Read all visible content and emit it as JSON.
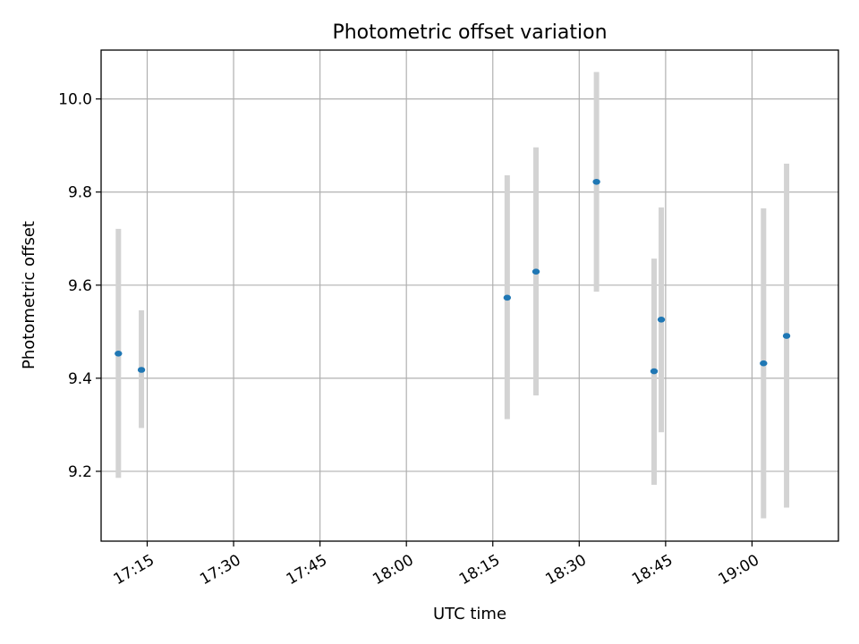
{
  "chart_data": {
    "type": "scatter",
    "title": "Photometric offset variation",
    "xlabel": "UTC time",
    "ylabel": "Photometric offset",
    "x_axis_type": "time",
    "xlim": [
      "17:07",
      "19:15"
    ],
    "ylim": [
      9.05,
      10.105
    ],
    "x_ticks": [
      "17:15",
      "17:30",
      "17:45",
      "18:00",
      "18:15",
      "18:30",
      "18:45",
      "19:00"
    ],
    "y_ticks": [
      9.2,
      9.4,
      9.6,
      9.8,
      10.0
    ],
    "y_tick_labels": [
      "9.2",
      "9.4",
      "9.6",
      "9.8",
      "10.0"
    ],
    "grid": true,
    "legend": "none",
    "points": [
      {
        "x": "17:10",
        "y": 9.453,
        "y_low": 9.186,
        "y_high": 9.721
      },
      {
        "x": "17:14",
        "y": 9.418,
        "y_low": 9.293,
        "y_high": 9.546
      },
      {
        "x": "18:17:30",
        "y": 9.573,
        "y_low": 9.312,
        "y_high": 9.836
      },
      {
        "x": "18:22:30",
        "y": 9.629,
        "y_low": 9.363,
        "y_high": 9.896
      },
      {
        "x": "18:33",
        "y": 9.822,
        "y_low": 9.586,
        "y_high": 10.058
      },
      {
        "x": "18:43",
        "y": 9.415,
        "y_low": 9.171,
        "y_high": 9.657
      },
      {
        "x": "18:44:15",
        "y": 9.526,
        "y_low": 9.284,
        "y_high": 9.767
      },
      {
        "x": "19:02",
        "y": 9.432,
        "y_low": 9.099,
        "y_high": 9.765
      },
      {
        "x": "19:06",
        "y": 9.491,
        "y_low": 9.122,
        "y_high": 9.861
      }
    ],
    "colors": {
      "marker": "#1f77b4",
      "errorbar": "#d3d3d3",
      "grid": "#b0b0b0",
      "axes": "#000000"
    }
  }
}
